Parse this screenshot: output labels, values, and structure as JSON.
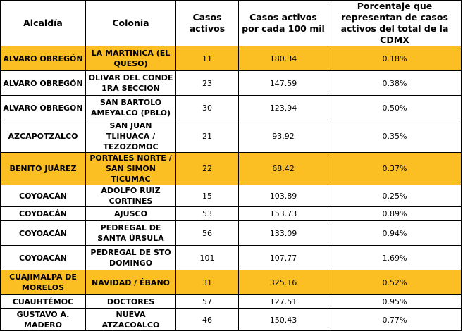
{
  "table": {
    "headers": [
      "Alcaldía",
      "Colonia",
      "Casos activos",
      "Casos activos por cada 100 mil",
      "Porcentaje que representan de casos activos del total de la CDMX"
    ],
    "rows": [
      {
        "alcaldia": "ALVARO OBREGÓN",
        "colonia": "LA MARTINICA (EL QUESO)",
        "casos": "11",
        "por100mil": "180.34",
        "porcentaje": "0.18%",
        "highlighted": true
      },
      {
        "alcaldia": "ALVARO OBREGÓN",
        "colonia": "OLIVAR DEL CONDE 1RA SECCION",
        "casos": "23",
        "por100mil": "147.59",
        "porcentaje": "0.38%",
        "highlighted": false
      },
      {
        "alcaldia": "ALVARO OBREGÓN",
        "colonia": "SAN BARTOLO AMEYALCO (PBLO)",
        "casos": "30",
        "por100mil": "123.94",
        "porcentaje": "0.50%",
        "highlighted": false
      },
      {
        "alcaldia": "AZCAPOTZALCO",
        "colonia": "SAN JUAN TLIHUACA / TEZOZOMOC",
        "casos": "21",
        "por100mil": "93.92",
        "porcentaje": "0.35%",
        "highlighted": false
      },
      {
        "alcaldia": "BENITO JUÁREZ",
        "colonia": "PORTALES NORTE / SAN SIMON TICUMAC",
        "casos": "22",
        "por100mil": "68.42",
        "porcentaje": "0.37%",
        "highlighted": true
      },
      {
        "alcaldia": "COYOACÁN",
        "colonia": "ADOLFO RUIZ CORTINES",
        "casos": "15",
        "por100mil": "103.89",
        "porcentaje": "0.25%",
        "highlighted": false
      },
      {
        "alcaldia": "COYOACÁN",
        "colonia": "AJUSCO",
        "casos": "53",
        "por100mil": "153.73",
        "porcentaje": "0.89%",
        "highlighted": false
      },
      {
        "alcaldia": "COYOACÁN",
        "colonia": "PEDREGAL DE SANTA ÚRSULA",
        "casos": "56",
        "por100mil": "133.09",
        "porcentaje": "0.94%",
        "highlighted": false
      },
      {
        "alcaldia": "COYOACÁN",
        "colonia": "PEDREGAL DE STO DOMINGO",
        "casos": "101",
        "por100mil": "107.77",
        "porcentaje": "1.69%",
        "highlighted": false
      },
      {
        "alcaldia": "CUAJIMALPA DE MORELOS",
        "colonia": "NAVIDAD / ÉBANO",
        "casos": "31",
        "por100mil": "325.16",
        "porcentaje": "0.52%",
        "highlighted": true
      },
      {
        "alcaldia": "CUAUHTÉMOC",
        "colonia": "DOCTORES",
        "casos": "57",
        "por100mil": "127.51",
        "porcentaje": "0.95%",
        "highlighted": false
      },
      {
        "alcaldia": "GUSTAVO A. MADERO",
        "colonia": "NUEVA ATZACOALCO",
        "casos": "46",
        "por100mil": "150.43",
        "porcentaje": "0.77%",
        "highlighted": false
      }
    ]
  },
  "colors": {
    "highlight": "#fbbf24",
    "border": "#000000",
    "background": "#ffffff"
  }
}
